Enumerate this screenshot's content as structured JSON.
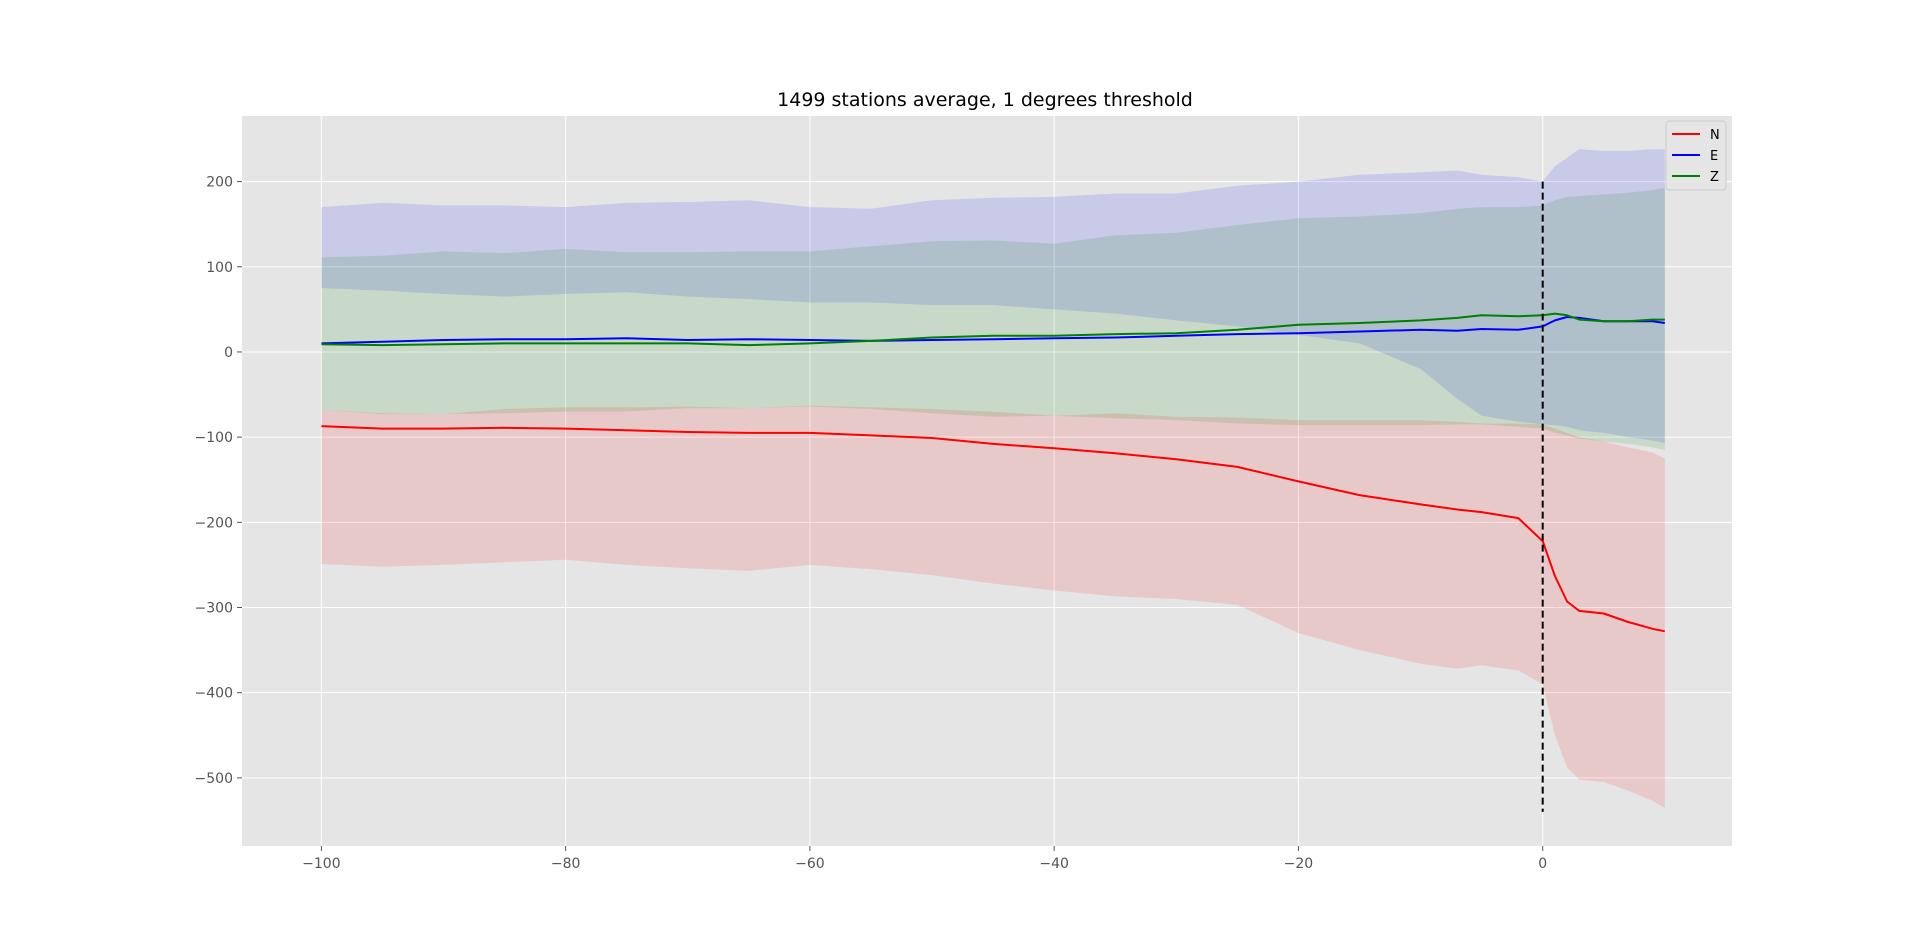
{
  "chart_data": {
    "type": "line",
    "title": "1499 stations average, 1 degrees threshold",
    "xlabel": "",
    "ylabel": "",
    "xlim": [
      -106.5,
      15.5
    ],
    "ylim": [
      -580,
      277
    ],
    "xticks": [
      -100,
      -80,
      -60,
      -40,
      -20,
      0
    ],
    "xtick_labels": [
      "−100",
      "−80",
      "−60",
      "−40",
      "−20",
      "0"
    ],
    "yticks": [
      200,
      100,
      0,
      -100,
      -200,
      -300,
      -400,
      -500
    ],
    "ytick_labels": [
      "200",
      "100",
      "0",
      "−100",
      "−200",
      "−300",
      "−400",
      "−500"
    ],
    "grid": true,
    "legend_position": "top-right",
    "colors": {
      "plot_background": "#e5e5e5",
      "grid": "#ffffff",
      "N": "#ff0000",
      "E": "#0000ff",
      "Z": "#008000",
      "marker": "#000000"
    },
    "vline": {
      "x": 0,
      "ymin": -540,
      "ymax": 200,
      "style": "dashed"
    },
    "series": [
      {
        "name": "N",
        "x": [
          -100,
          -95,
          -90,
          -85,
          -80,
          -75,
          -70,
          -65,
          -60,
          -55,
          -50,
          -45,
          -40,
          -35,
          -30,
          -25,
          -20,
          -15,
          -10,
          -7,
          -5,
          -2,
          0,
          1,
          2,
          3,
          5,
          7,
          9,
          10
        ],
        "values": [
          -87,
          -90,
          -90,
          -89,
          -90,
          -92,
          -94,
          -95,
          -95,
          -98,
          -101,
          -108,
          -113,
          -119,
          -126,
          -135,
          -152,
          -168,
          -179,
          -185,
          -188,
          -195,
          -222,
          -263,
          -293,
          -304,
          -307,
          -317,
          -325,
          -328
        ],
        "upper": [
          -68,
          -72,
          -73,
          -67,
          -65,
          -65,
          -64,
          -66,
          -63,
          -65,
          -67,
          -70,
          -75,
          -72,
          -76,
          -77,
          -80,
          -80,
          -80,
          -82,
          -84,
          -84,
          -85,
          -90,
          -95,
          -100,
          -105,
          -112,
          -118,
          -125
        ],
        "lower": [
          -249,
          -252,
          -250,
          -247,
          -244,
          -250,
          -254,
          -257,
          -250,
          -255,
          -262,
          -272,
          -280,
          -287,
          -290,
          -297,
          -330,
          -350,
          -366,
          -372,
          -368,
          -374,
          -390,
          -450,
          -488,
          -502,
          -505,
          -515,
          -527,
          -535
        ]
      },
      {
        "name": "E",
        "x": [
          -100,
          -95,
          -90,
          -85,
          -80,
          -75,
          -70,
          -65,
          -60,
          -55,
          -50,
          -45,
          -40,
          -35,
          -30,
          -25,
          -20,
          -15,
          -10,
          -7,
          -5,
          -2,
          0,
          1,
          2,
          3,
          5,
          7,
          9,
          10
        ],
        "values": [
          10,
          12,
          14,
          15,
          15,
          16,
          14,
          15,
          14,
          13,
          14,
          15,
          16,
          17,
          19,
          21,
          22,
          24,
          26,
          25,
          27,
          26,
          30,
          37,
          41,
          40,
          36,
          36,
          36,
          34
        ],
        "upper": [
          170,
          175,
          172,
          172,
          170,
          175,
          176,
          178,
          170,
          168,
          178,
          181,
          182,
          186,
          186,
          195,
          200,
          208,
          211,
          213,
          208,
          205,
          200,
          218,
          228,
          238,
          236,
          236,
          238,
          238
        ],
        "lower": [
          75,
          72,
          68,
          65,
          68,
          70,
          65,
          62,
          58,
          58,
          55,
          55,
          50,
          45,
          37,
          30,
          20,
          10,
          -20,
          -55,
          -75,
          -82,
          -85,
          -86,
          -88,
          -92,
          -95,
          -100,
          -104,
          -107
        ]
      },
      {
        "name": "Z",
        "x": [
          -100,
          -95,
          -90,
          -85,
          -80,
          -75,
          -70,
          -65,
          -60,
          -55,
          -50,
          -45,
          -40,
          -35,
          -30,
          -25,
          -20,
          -15,
          -10,
          -7,
          -5,
          -2,
          0,
          1,
          2,
          3,
          5,
          7,
          9,
          10
        ],
        "values": [
          9,
          8,
          9,
          10,
          10,
          10,
          10,
          8,
          10,
          13,
          17,
          19,
          19,
          21,
          22,
          26,
          32,
          34,
          37,
          40,
          43,
          42,
          43,
          45,
          43,
          38,
          36,
          36,
          38,
          38
        ],
        "upper": [
          111,
          113,
          118,
          116,
          121,
          117,
          117,
          118,
          118,
          124,
          130,
          131,
          127,
          137,
          140,
          149,
          157,
          159,
          163,
          168,
          170,
          170,
          172,
          178,
          182,
          183,
          185,
          187,
          190,
          193
        ],
        "lower": [
          -68,
          -73,
          -73,
          -72,
          -70,
          -70,
          -66,
          -66,
          -64,
          -67,
          -72,
          -76,
          -75,
          -78,
          -80,
          -84,
          -86,
          -86,
          -86,
          -85,
          -85,
          -88,
          -90,
          -95,
          -98,
          -102,
          -105,
          -108,
          -112,
          -115
        ]
      }
    ]
  }
}
